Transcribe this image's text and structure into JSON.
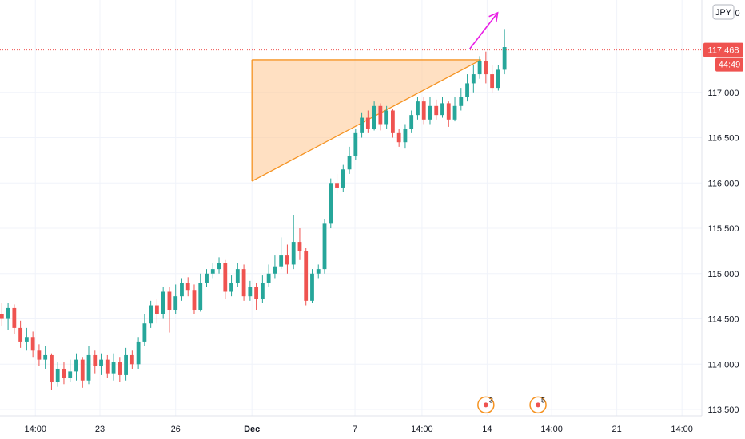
{
  "chart_data": {
    "type": "candlestick",
    "currency": "JPY",
    "y_tick_top_partial": "1 0",
    "ylim": [
      113.43,
      118.02
    ],
    "y_ticks": [
      {
        "value": 113.5,
        "label": "113.500"
      },
      {
        "value": 114.0,
        "label": "114.000"
      },
      {
        "value": 114.5,
        "label": "114.500"
      },
      {
        "value": 115.0,
        "label": "115.000"
      },
      {
        "value": 115.5,
        "label": "115.500"
      },
      {
        "value": 116.0,
        "label": "116.000"
      },
      {
        "value": 116.5,
        "label": "116.500"
      },
      {
        "value": 117.0,
        "label": "117.000"
      }
    ],
    "x_ticks": [
      {
        "bar": 5.4,
        "label": "14:00",
        "bold": false
      },
      {
        "bar": 15.8,
        "label": "23",
        "bold": false
      },
      {
        "bar": 28.0,
        "label": "26",
        "bold": false
      },
      {
        "bar": 40.3,
        "label": "Dec",
        "bold": true
      },
      {
        "bar": 56.9,
        "label": "7",
        "bold": false
      },
      {
        "bar": 67.7,
        "label": "14:00",
        "bold": false
      },
      {
        "bar": 78.2,
        "label": "14",
        "bold": false
      },
      {
        "bar": 88.6,
        "label": "14:00",
        "bold": false
      },
      {
        "bar": 99.1,
        "label": "21",
        "bold": false
      },
      {
        "bar": 109.6,
        "label": "14:00",
        "bold": false
      }
    ],
    "x_range": [
      -0.3,
      112.8
    ],
    "last_price": {
      "value": 117.468,
      "label": "117.468",
      "countdown": "44:49"
    },
    "candles": [
      [
        114.55,
        114.5,
        114.68,
        114.42
      ],
      [
        114.5,
        114.62,
        114.68,
        114.38
      ],
      [
        114.62,
        114.4,
        114.66,
        114.33
      ],
      [
        114.4,
        114.25,
        114.48,
        114.18
      ],
      [
        114.25,
        114.3,
        114.4,
        114.15
      ],
      [
        114.3,
        114.15,
        114.36,
        114.08
      ],
      [
        114.15,
        114.05,
        114.22,
        113.98
      ],
      [
        114.05,
        114.1,
        114.2,
        113.95
      ],
      [
        114.1,
        113.8,
        114.12,
        113.72
      ],
      [
        113.8,
        113.95,
        114.02,
        113.75
      ],
      [
        113.95,
        113.85,
        114.02,
        113.78
      ],
      [
        113.85,
        113.92,
        114.05,
        113.8
      ],
      [
        113.92,
        114.05,
        114.12,
        113.82
      ],
      [
        114.05,
        113.82,
        114.08,
        113.74
      ],
      [
        113.82,
        114.1,
        114.2,
        113.78
      ],
      [
        114.1,
        113.98,
        114.15,
        113.9
      ],
      [
        113.98,
        114.05,
        114.12,
        113.88
      ],
      [
        114.05,
        113.9,
        114.1,
        113.85
      ],
      [
        113.9,
        114.02,
        114.12,
        113.82
      ],
      [
        114.02,
        113.88,
        114.08,
        113.8
      ],
      [
        113.88,
        114.1,
        114.18,
        113.82
      ],
      [
        114.1,
        114.0,
        114.15,
        113.95
      ],
      [
        114.0,
        114.25,
        114.3,
        113.95
      ],
      [
        114.25,
        114.45,
        114.55,
        114.2
      ],
      [
        114.45,
        114.65,
        114.7,
        114.4
      ],
      [
        114.65,
        114.55,
        114.72,
        114.45
      ],
      [
        114.55,
        114.8,
        114.85,
        114.5
      ],
      [
        114.8,
        114.6,
        114.85,
        114.35
      ],
      [
        114.6,
        114.75,
        114.88,
        114.55
      ],
      [
        114.75,
        114.9,
        114.95,
        114.7
      ],
      [
        114.9,
        114.82,
        114.96,
        114.75
      ],
      [
        114.82,
        114.6,
        114.88,
        114.55
      ],
      [
        114.6,
        114.9,
        115.0,
        114.58
      ],
      [
        114.9,
        115.0,
        115.05,
        114.85
      ],
      [
        115.0,
        115.05,
        115.12,
        114.95
      ],
      [
        115.05,
        115.12,
        115.18,
        115.0
      ],
      [
        115.12,
        114.8,
        115.15,
        114.72
      ],
      [
        114.8,
        114.9,
        114.98,
        114.75
      ],
      [
        114.9,
        115.05,
        115.12,
        114.85
      ],
      [
        115.05,
        114.75,
        115.1,
        114.7
      ],
      [
        114.75,
        114.85,
        114.92,
        114.7
      ],
      [
        114.85,
        114.72,
        114.9,
        114.6
      ],
      [
        114.72,
        114.9,
        114.98,
        114.68
      ],
      [
        114.9,
        115.0,
        115.1,
        114.85
      ],
      [
        115.0,
        115.08,
        115.2,
        114.95
      ],
      [
        115.08,
        115.2,
        115.4,
        115.05
      ],
      [
        115.2,
        115.1,
        115.32,
        115.0
      ],
      [
        115.1,
        115.35,
        115.65,
        115.05
      ],
      [
        115.35,
        115.25,
        115.5,
        115.15
      ],
      [
        115.25,
        114.7,
        115.28,
        114.65
      ],
      [
        114.7,
        115.0,
        115.05,
        114.68
      ],
      [
        115.0,
        115.05,
        115.1,
        114.95
      ],
      [
        115.05,
        115.55,
        115.6,
        115.0
      ],
      [
        115.55,
        116.0,
        116.05,
        115.5
      ],
      [
        116.0,
        115.95,
        116.1,
        115.88
      ],
      [
        115.95,
        116.15,
        116.2,
        115.9
      ],
      [
        116.15,
        116.3,
        116.4,
        116.1
      ],
      [
        116.3,
        116.55,
        116.6,
        116.25
      ],
      [
        116.55,
        116.72,
        116.78,
        116.5
      ],
      [
        116.72,
        116.6,
        116.8,
        116.55
      ],
      [
        116.6,
        116.85,
        116.9,
        116.58
      ],
      [
        116.85,
        116.65,
        116.88,
        116.58
      ],
      [
        116.65,
        116.8,
        116.85,
        116.6
      ],
      [
        116.8,
        116.55,
        116.82,
        116.5
      ],
      [
        116.55,
        116.45,
        116.6,
        116.4
      ],
      [
        116.45,
        116.6,
        116.65,
        116.38
      ],
      [
        116.6,
        116.75,
        116.8,
        116.55
      ],
      [
        116.75,
        116.9,
        116.95,
        116.7
      ],
      [
        116.9,
        116.7,
        116.95,
        116.65
      ],
      [
        116.7,
        116.85,
        116.95,
        116.65
      ],
      [
        116.85,
        116.75,
        116.92,
        116.7
      ],
      [
        116.75,
        116.88,
        116.95,
        116.72
      ],
      [
        116.88,
        116.7,
        116.9,
        116.62
      ],
      [
        116.7,
        116.85,
        116.95,
        116.68
      ],
      [
        116.85,
        116.95,
        117.05,
        116.8
      ],
      [
        116.95,
        117.1,
        117.2,
        116.9
      ],
      [
        117.1,
        117.2,
        117.3,
        117.0
      ],
      [
        117.2,
        117.35,
        117.4,
        117.15
      ],
      [
        117.35,
        117.2,
        117.45,
        117.1
      ],
      [
        117.2,
        117.05,
        117.3,
        117.0
      ],
      [
        117.05,
        117.25,
        117.3,
        117.02
      ],
      [
        117.25,
        117.5,
        117.7,
        117.2
      ]
    ],
    "triangle": {
      "x1": 40.3,
      "x2": 77.2,
      "top_price": 117.36,
      "bottom_price": 116.02
    },
    "arrow": {
      "x1": 75.4,
      "x2": 79.9,
      "price_from": 117.48,
      "price_to": 117.88
    }
  },
  "events": [
    {
      "label": "3",
      "bar": 78.0,
      "price": 113.55
    },
    {
      "label": "5",
      "bar": 86.4,
      "price": 113.55
    }
  ],
  "colors": {
    "up": "#26a69a",
    "down": "#ef5350",
    "grid": "#f0f3fa",
    "axis": "#131722",
    "triangle_fill": "#ffcc99",
    "triangle_stroke": "#f59322",
    "arrow": "#e91ee4",
    "price_tag": "#ef5350",
    "event": "#f59322"
  }
}
